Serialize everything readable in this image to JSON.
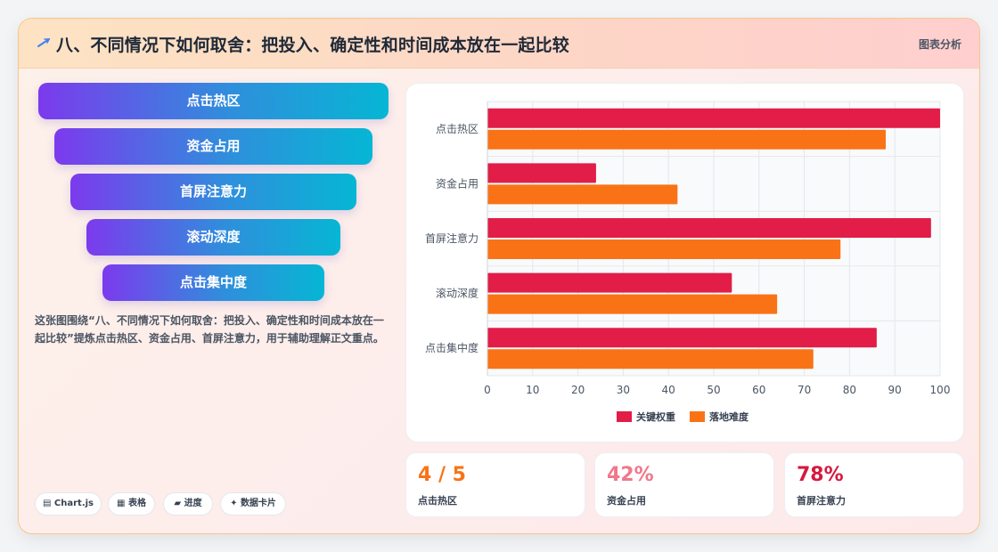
{
  "header": {
    "title": "八、不同情况下如何取舍：把投入、确定性和时间成本放在一起比较",
    "tag": "图表分析",
    "icon": "sparkle-icon"
  },
  "funnel": [
    "点击热区",
    "资金占用",
    "首屏注意力",
    "滚动深度",
    "点击集中度"
  ],
  "description": "这张图围绕“八、不同情况下如何取舍：把投入、确定性和时间成本放在一起比较”提炼点击热区、资金占用、首屏注意力，用于辅助理解正文重点。",
  "chips": [
    {
      "icon": "chart-icon",
      "label": "Chart.js"
    },
    {
      "icon": "table-icon",
      "label": "表格"
    },
    {
      "icon": "progress-icon",
      "label": "进度"
    },
    {
      "icon": "card-icon",
      "label": "数据卡片"
    }
  ],
  "stats": [
    {
      "value": "4 / 5",
      "label": "点击热区",
      "color": "#f97316"
    },
    {
      "value": "42%",
      "label": "资金占用",
      "color": "#f0788a"
    },
    {
      "value": "78%",
      "label": "首屏注意力",
      "color": "#d6193f"
    }
  ],
  "chart_data": {
    "type": "bar",
    "orientation": "horizontal",
    "categories": [
      "点击热区",
      "资金占用",
      "首屏注意力",
      "滚动深度",
      "点击集中度"
    ],
    "series": [
      {
        "name": "关键权重",
        "values": [
          100,
          24,
          98,
          54,
          86
        ],
        "color": "#e11d48"
      },
      {
        "name": "落地难度",
        "values": [
          88,
          42,
          78,
          64,
          72
        ],
        "color": "#f97316"
      }
    ],
    "xlim": [
      0,
      100
    ],
    "xticks": [
      0,
      10,
      20,
      30,
      40,
      50,
      60,
      70,
      80,
      90,
      100
    ],
    "grid": true,
    "legend": "bottom"
  }
}
